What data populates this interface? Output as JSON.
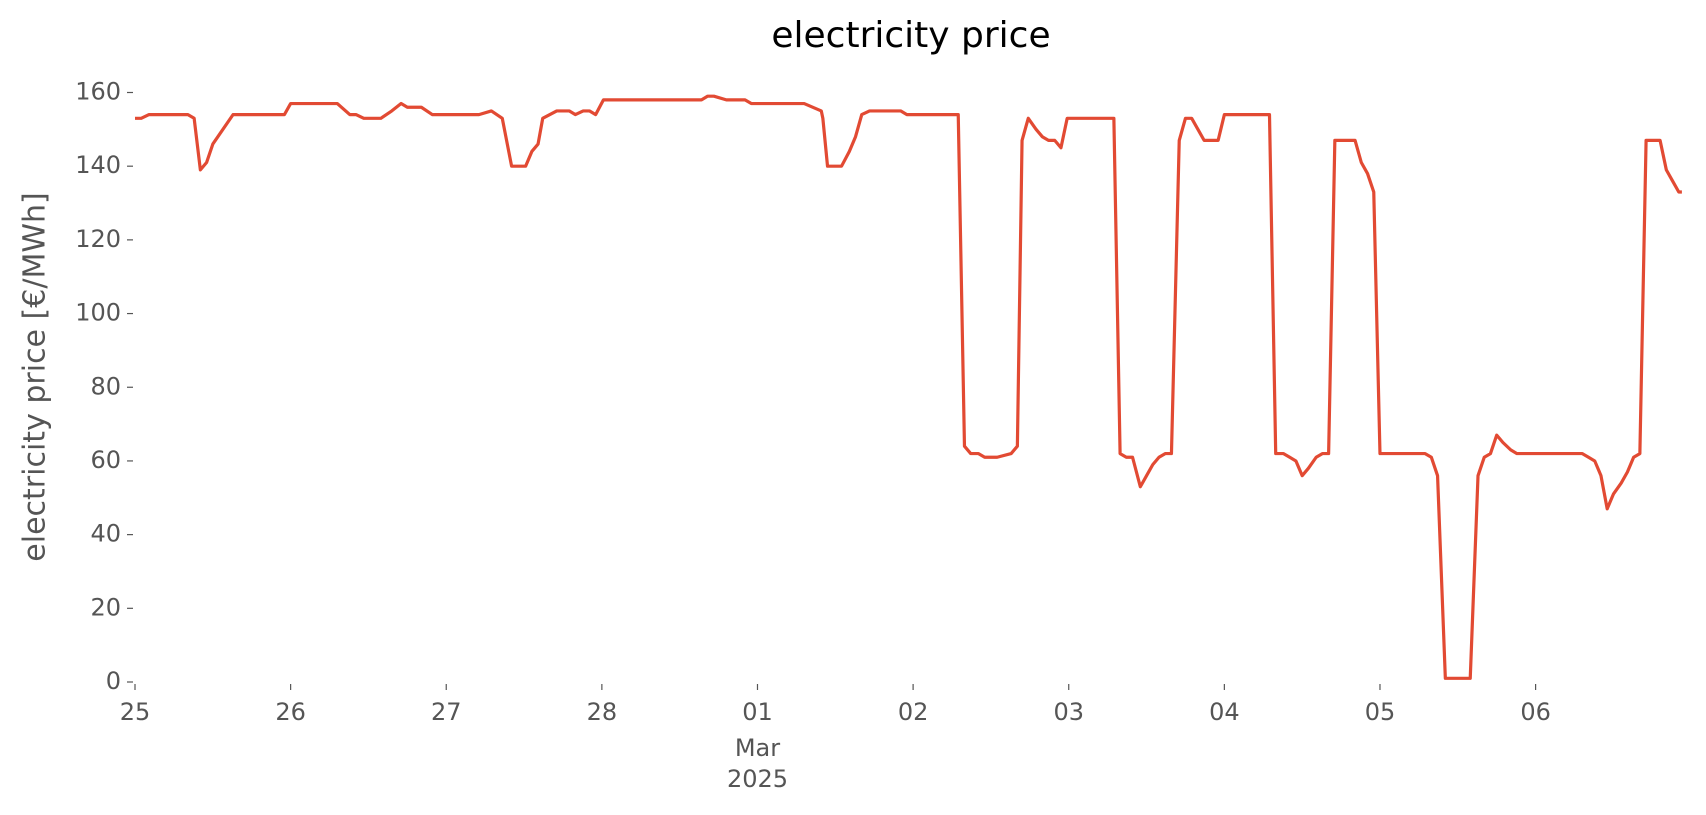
{
  "chart_data": {
    "type": "line",
    "title": "electricity price",
    "ylabel": "electricity price [€/MWh]",
    "x_month_label": "Mar",
    "x_year_label": "2025",
    "xlim": [
      0,
      9.96
    ],
    "xticks": [
      {
        "value": 0,
        "label": "25"
      },
      {
        "value": 1,
        "label": "26"
      },
      {
        "value": 2,
        "label": "27"
      },
      {
        "value": 3,
        "label": "28"
      },
      {
        "value": 4,
        "label": "01"
      },
      {
        "value": 5,
        "label": "02"
      },
      {
        "value": 6,
        "label": "03"
      },
      {
        "value": 7,
        "label": "04"
      },
      {
        "value": 8,
        "label": "05"
      },
      {
        "value": 9,
        "label": "06"
      }
    ],
    "ylim": [
      0,
      160
    ],
    "yticks": [
      0,
      20,
      40,
      60,
      80,
      100,
      120,
      140,
      160
    ],
    "grid": false,
    "x": [
      0,
      0.04,
      0.09,
      0.34,
      0.38,
      0.42,
      0.46,
      0.5,
      0.63,
      0.96,
      1.0,
      1.3,
      1.38,
      1.42,
      1.47,
      1.58,
      1.65,
      1.71,
      1.75,
      1.84,
      1.91,
      2.21,
      2.29,
      2.36,
      2.42,
      2.51,
      2.55,
      2.59,
      2.62,
      2.71,
      2.79,
      2.83,
      2.88,
      2.92,
      2.96,
      3.01,
      3.64,
      3.68,
      3.72,
      3.8,
      3.92,
      3.96,
      4.3,
      4.41,
      4.42,
      4.45,
      4.54,
      4.59,
      4.63,
      4.67,
      4.72,
      4.79,
      4.82,
      4.87,
      4.92,
      4.96,
      5.29,
      5.33,
      5.37,
      5.42,
      5.46,
      5.54,
      5.63,
      5.67,
      5.7,
      5.74,
      5.79,
      5.83,
      5.87,
      5.91,
      5.95,
      5.99,
      6.29,
      6.33,
      6.37,
      6.41,
      6.46,
      6.5,
      6.54,
      6.58,
      6.62,
      6.66,
      6.71,
      6.75,
      6.79,
      6.83,
      6.87,
      6.96,
      7.0,
      7.29,
      7.33,
      7.38,
      7.42,
      7.46,
      7.5,
      7.54,
      7.59,
      7.63,
      7.67,
      7.71,
      7.84,
      7.88,
      7.92,
      7.96,
      8.0,
      8.29,
      8.33,
      8.37,
      8.42,
      8.58,
      8.63,
      8.67,
      8.71,
      8.75,
      8.79,
      8.84,
      8.88,
      9.3,
      9.34,
      9.38,
      9.42,
      9.46,
      9.5,
      9.55,
      9.59,
      9.63,
      9.67,
      9.71,
      9.8,
      9.84,
      9.88,
      9.92,
      9.94
    ],
    "series": [
      {
        "name": "electricity price",
        "color": "#e24a33",
        "values": [
          153,
          153,
          154,
          154,
          153,
          139,
          141,
          146,
          154,
          154,
          157,
          157,
          154,
          154,
          153,
          153,
          155,
          157,
          156,
          156,
          154,
          154,
          155,
          153,
          140,
          140,
          144,
          146,
          153,
          155,
          155,
          154,
          155,
          155,
          154,
          158,
          158,
          159,
          159,
          158,
          158,
          157,
          157,
          155,
          153,
          140,
          140,
          144,
          148,
          154,
          155,
          155,
          155,
          155,
          155,
          154,
          154,
          64,
          62,
          62,
          61,
          61,
          62,
          64,
          147,
          153,
          150,
          148,
          147,
          147,
          145,
          153,
          153,
          62,
          61,
          61,
          53,
          56,
          59,
          61,
          62,
          62,
          147,
          153,
          153,
          150,
          147,
          147,
          154,
          154,
          62,
          62,
          61,
          60,
          56,
          58,
          61,
          62,
          62,
          147,
          147,
          141,
          138,
          133,
          62,
          62,
          61,
          56,
          1,
          1,
          56,
          61,
          62,
          67,
          65,
          63,
          62,
          62,
          61,
          60,
          56,
          47,
          51,
          54,
          57,
          61,
          62,
          147,
          147,
          139,
          136,
          133,
          133
        ]
      }
    ]
  }
}
